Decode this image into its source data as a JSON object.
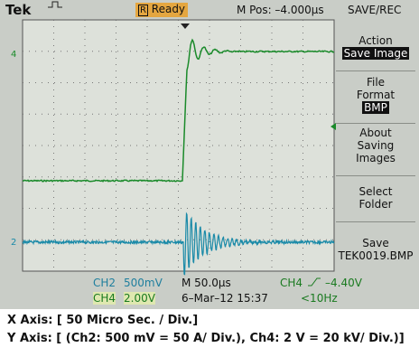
{
  "header": {
    "brand": "Tek",
    "status_badge": "R",
    "status": "Ready",
    "position": "M Pos: –4.000µs",
    "menu_title": "SAVE/REC"
  },
  "menu": [
    {
      "label": "Action",
      "value": "Save Image"
    },
    {
      "label": "File Format",
      "value": "BMP"
    },
    {
      "label": "About Saving Images"
    },
    {
      "label": "Select Folder"
    },
    {
      "label": "Save",
      "value": "TEK0019.BMP"
    }
  ],
  "markers": {
    "ch4": "4",
    "ch2": "2"
  },
  "status_bar": {
    "ch2": "CH2",
    "ch2_scale": "500mV",
    "timebase": "M 50.0µs",
    "trigger_source": "CH4",
    "trigger_level": "–4.40V",
    "ch4": "CH4",
    "ch4_scale": "2.00V",
    "date": "6–Mar–12 15:37",
    "freq": "<10Hz"
  },
  "caption": {
    "x_axis": "X Axis: [ 50 Micro Sec. / Div.]",
    "y_axis": "Y Axis: [ (Ch2: 500 mV = 50 A/ Div.), Ch4: 2 V = 20 kV/ Div.)]"
  }
}
